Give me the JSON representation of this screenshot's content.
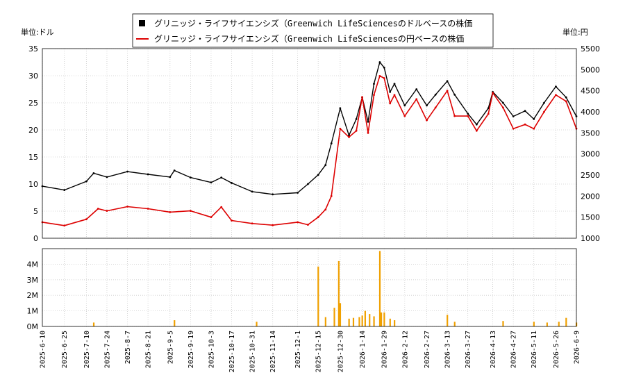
{
  "chart_data": [
    {
      "type": "line",
      "panel": "price",
      "legend": [
        {
          "label": "グリニッジ・ライフサイエンシズ（Greenwich LifeSciencesのドルベースの株価",
          "color": "#000000",
          "marker": "square"
        },
        {
          "label": "グリニッジ・ライフサイエンシズ（Greenwich LifeSciencesの円ベースの株価",
          "color": "#dd0000",
          "marker": "line"
        }
      ],
      "legend_placement": "top-center",
      "left_axis_label": "単位:ドル",
      "right_axis_label": "単位:円",
      "left_ylim": [
        0,
        35
      ],
      "right_ylim": [
        1000,
        5500
      ],
      "left_yticks": [
        "0",
        "5",
        "10",
        "15",
        "20",
        "25",
        "30",
        "35"
      ],
      "right_yticks": [
        "1000",
        "1500",
        "2000",
        "2500",
        "3000",
        "3500",
        "4000",
        "4500",
        "5000",
        "5500"
      ],
      "grid": true,
      "series": [
        {
          "name": "グリニッジ・ライフサイエンシズ（Greenwich LifeSciencesのドルベースの株価",
          "axis": "left",
          "color": "#000000",
          "x": [
            "2025-06-10",
            "2025-06-25",
            "2025-07-10",
            "2025-07-15",
            "2025-07-24",
            "2025-08-07",
            "2025-08-21",
            "2025-09-05",
            "2025-09-08",
            "2025-09-19",
            "2025-10-03",
            "2025-10-10",
            "2025-10-17",
            "2025-10-31",
            "2025-11-14",
            "2025-12-01",
            "2025-12-08",
            "2025-12-15",
            "2025-12-20",
            "2025-12-24",
            "2025-12-30",
            "2026-01-05",
            "2026-01-10",
            "2026-01-14",
            "2026-01-18",
            "2026-01-22",
            "2026-01-26",
            "2026-01-29",
            "2026-02-02",
            "2026-02-05",
            "2026-02-12",
            "2026-02-20",
            "2026-02-27",
            "2026-03-05",
            "2026-03-13",
            "2026-03-18",
            "2026-03-27",
            "2026-04-02",
            "2026-04-10",
            "2026-04-13",
            "2026-04-20",
            "2026-04-27",
            "2026-05-05",
            "2026-05-11",
            "2026-05-18",
            "2026-05-26",
            "2026-06-02",
            "2026-06-09"
          ],
          "values": [
            9.6,
            8.9,
            10.5,
            12.0,
            11.3,
            12.3,
            11.8,
            11.3,
            12.5,
            11.2,
            10.3,
            11.2,
            10.2,
            8.6,
            8.1,
            8.4,
            10.0,
            11.7,
            13.5,
            17.5,
            24.0,
            19.0,
            22.0,
            26.0,
            21.5,
            28.5,
            32.5,
            31.5,
            27.0,
            28.5,
            24.5,
            27.5,
            24.5,
            26.5,
            29.0,
            26.5,
            23.0,
            21.0,
            24.0,
            27.0,
            25.0,
            22.5,
            23.5,
            22.0,
            25.0,
            28.0,
            26.0,
            22.5
          ]
        },
        {
          "name": "グリニッジ・ライフサイエンシズ（Greenwich LifeSciencesの円ベースの株価",
          "axis": "right",
          "color": "#dd0000",
          "x": [
            "2025-06-10",
            "2025-06-25",
            "2025-07-10",
            "2025-07-18",
            "2025-07-24",
            "2025-08-07",
            "2025-08-21",
            "2025-09-05",
            "2025-09-19",
            "2025-10-03",
            "2025-10-10",
            "2025-10-17",
            "2025-10-31",
            "2025-11-14",
            "2025-12-01",
            "2025-12-08",
            "2025-12-15",
            "2025-12-20",
            "2025-12-24",
            "2025-12-30",
            "2026-01-05",
            "2026-01-10",
            "2026-01-14",
            "2026-01-18",
            "2026-01-22",
            "2026-01-26",
            "2026-01-29",
            "2026-02-02",
            "2026-02-05",
            "2026-02-12",
            "2026-02-20",
            "2026-02-27",
            "2026-03-05",
            "2026-03-13",
            "2026-03-18",
            "2026-03-27",
            "2026-04-02",
            "2026-04-10",
            "2026-04-13",
            "2026-04-20",
            "2026-04-27",
            "2026-05-05",
            "2026-05-11",
            "2026-05-18",
            "2026-05-26",
            "2026-06-02",
            "2026-06-09"
          ],
          "values": [
            1380,
            1300,
            1450,
            1700,
            1650,
            1750,
            1700,
            1620,
            1650,
            1500,
            1740,
            1420,
            1350,
            1310,
            1380,
            1320,
            1500,
            1680,
            2000,
            3600,
            3400,
            3550,
            4350,
            3500,
            4400,
            4850,
            4800,
            4200,
            4400,
            3900,
            4300,
            3800,
            4100,
            4500,
            3900,
            3900,
            3550,
            3950,
            4450,
            4100,
            3600,
            3700,
            3600,
            4000,
            4400,
            4250,
            3600
          ]
        }
      ]
    },
    {
      "type": "bar",
      "panel": "volume",
      "ylim": [
        0,
        5000000
      ],
      "yticks": [
        "0M",
        "1M",
        "2M",
        "3M",
        "4M"
      ],
      "bar_color": "#f0a000",
      "grid": true,
      "x_ticks": [
        "2025-6-10",
        "2025-6-25",
        "2025-7-10",
        "2025-7-24",
        "2025-8-7",
        "2025-8-21",
        "2025-9-5",
        "2025-9-19",
        "2025-10-3",
        "2025-10-17",
        "2025-10-31",
        "2025-11-14",
        "2025-12-1",
        "2025-12-15",
        "2025-12-30",
        "2026-1-14",
        "2026-1-29",
        "2026-2-12",
        "2026-2-27",
        "2026-3-13",
        "2026-3-27",
        "2026-4-13",
        "2026-4-27",
        "2026-5-11",
        "2026-5-26",
        "2026-6-9"
      ],
      "x": [
        "2025-07-15",
        "2025-09-08",
        "2025-11-03",
        "2025-12-15",
        "2025-12-20",
        "2025-12-26",
        "2025-12-29",
        "2025-12-30",
        "2026-01-05",
        "2026-01-08",
        "2026-01-12",
        "2026-01-14",
        "2026-01-16",
        "2026-01-19",
        "2026-01-22",
        "2026-01-26",
        "2026-01-27",
        "2026-01-29",
        "2026-02-02",
        "2026-02-05",
        "2026-03-13",
        "2026-03-18",
        "2026-04-20",
        "2026-05-11",
        "2026-05-20",
        "2026-05-28",
        "2026-06-02",
        "2026-06-09"
      ],
      "values": [
        250000,
        400000,
        300000,
        3850000,
        600000,
        1200000,
        4200000,
        1500000,
        500000,
        550000,
        600000,
        700000,
        1000000,
        800000,
        650000,
        4850000,
        900000,
        900000,
        500000,
        400000,
        750000,
        300000,
        350000,
        300000,
        250000,
        300000,
        550000,
        250000
      ]
    }
  ]
}
